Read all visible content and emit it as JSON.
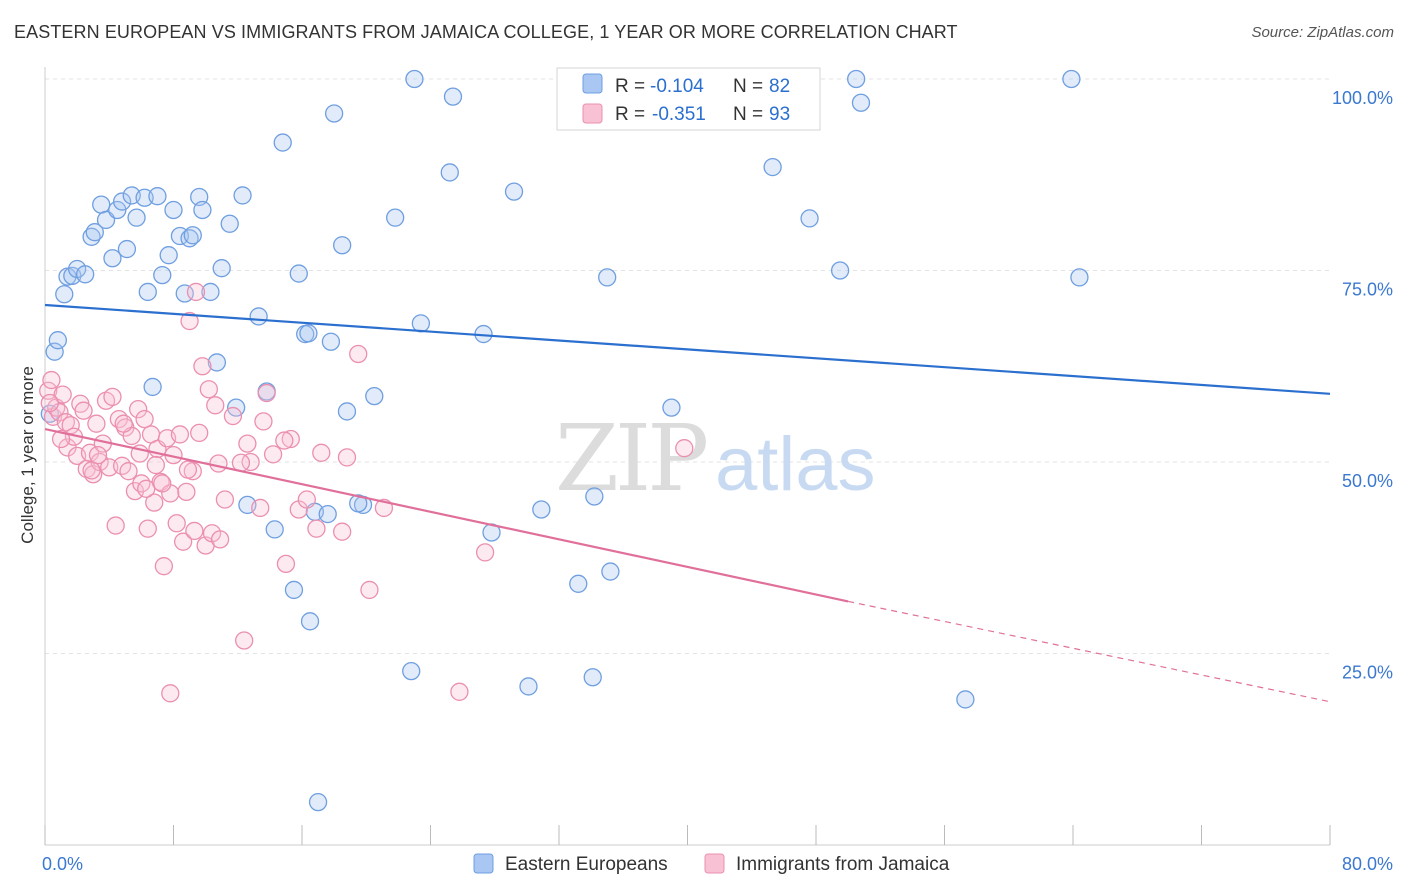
{
  "title": "EASTERN EUROPEAN VS IMMIGRANTS FROM JAMAICA COLLEGE, 1 YEAR OR MORE CORRELATION CHART",
  "source": "Source: ZipAtlas.com",
  "watermark": {
    "zip": "ZIP",
    "atlas": "atlas"
  },
  "legend_stats": [
    {
      "r_label": "R =",
      "r_value": "-0.104",
      "n_label": "N =",
      "n_value": "82"
    },
    {
      "r_label": "R =",
      "r_value": "-0.351",
      "n_label": "N =",
      "n_value": "93"
    }
  ],
  "chart_data": {
    "type": "scatter",
    "title": "EASTERN EUROPEAN VS IMMIGRANTS FROM JAMAICA COLLEGE, 1 YEAR OR MORE CORRELATION CHART",
    "xlabel": "",
    "ylabel": "College, 1 year or more",
    "xlim": [
      0,
      80
    ],
    "ylim": [
      0,
      100
    ],
    "x_tick_labels": [
      "0.0%",
      "80.0%"
    ],
    "y_tick_labels": [
      "25.0%",
      "50.0%",
      "75.0%",
      "100.0%"
    ],
    "y_ticks": [
      25,
      50,
      75,
      100
    ],
    "grid": true,
    "legend_position": "bottom",
    "series": [
      {
        "name": "Eastern Europeans",
        "color": "#7aaaf0",
        "line_color": "#2b6fcf",
        "trend": {
          "x": [
            0,
            80
          ],
          "y": [
            70.5,
            58.9
          ]
        },
        "points": [
          [
            0.3,
            56.3
          ],
          [
            0.6,
            64.4
          ],
          [
            0.8,
            65.9
          ],
          [
            1.2,
            71.9
          ],
          [
            1.4,
            74.2
          ],
          [
            1.7,
            74.3
          ],
          [
            2.0,
            75.2
          ],
          [
            2.5,
            74.5
          ],
          [
            2.9,
            79.4
          ],
          [
            3.1,
            80.0
          ],
          [
            3.5,
            83.6
          ],
          [
            3.8,
            81.6
          ],
          [
            4.2,
            76.6
          ],
          [
            4.5,
            82.9
          ],
          [
            4.8,
            84.0
          ],
          [
            5.1,
            77.8
          ],
          [
            5.4,
            84.8
          ],
          [
            5.7,
            81.9
          ],
          [
            6.2,
            84.5
          ],
          [
            6.4,
            72.2
          ],
          [
            6.7,
            59.8
          ],
          [
            7.0,
            84.7
          ],
          [
            7.3,
            74.4
          ],
          [
            7.7,
            77.0
          ],
          [
            8.0,
            82.9
          ],
          [
            8.4,
            79.5
          ],
          [
            8.7,
            72.0
          ],
          [
            9.0,
            79.2
          ],
          [
            9.2,
            79.6
          ],
          [
            9.6,
            84.6
          ],
          [
            9.8,
            82.9
          ],
          [
            10.3,
            72.2
          ],
          [
            10.7,
            63.0
          ],
          [
            11.0,
            75.3
          ],
          [
            11.5,
            81.1
          ],
          [
            11.9,
            57.1
          ],
          [
            12.3,
            84.8
          ],
          [
            12.6,
            44.4
          ],
          [
            13.3,
            69.0
          ],
          [
            13.8,
            59.2
          ],
          [
            14.3,
            41.2
          ],
          [
            14.8,
            91.7
          ],
          [
            15.5,
            33.3
          ],
          [
            15.8,
            74.6
          ],
          [
            16.2,
            66.7
          ],
          [
            16.5,
            29.2
          ],
          [
            17.0,
            5.6
          ],
          [
            17.8,
            65.7
          ],
          [
            18.0,
            95.5
          ],
          [
            18.5,
            78.3
          ],
          [
            18.8,
            56.6
          ],
          [
            19.8,
            44.4
          ],
          [
            20.5,
            58.6
          ],
          [
            21.8,
            81.9
          ],
          [
            22.8,
            22.7
          ],
          [
            23.4,
            68.1
          ],
          [
            25.2,
            87.8
          ],
          [
            25.4,
            97.7
          ],
          [
            27.3,
            66.7
          ],
          [
            27.8,
            40.8
          ],
          [
            29.2,
            85.3
          ],
          [
            30.1,
            20.7
          ],
          [
            30.9,
            43.8
          ],
          [
            33.2,
            34.1
          ],
          [
            34.1,
            21.9
          ],
          [
            34.2,
            45.5
          ],
          [
            35.0,
            74.1
          ],
          [
            35.2,
            35.7
          ],
          [
            39.0,
            57.1
          ],
          [
            45.3,
            88.5
          ],
          [
            47.6,
            81.8
          ],
          [
            49.5,
            75.0
          ],
          [
            50.5,
            100.0
          ],
          [
            50.8,
            96.9
          ],
          [
            57.3,
            19.0
          ],
          [
            63.9,
            100.0
          ],
          [
            64.4,
            74.1
          ],
          [
            16.8,
            43.5
          ],
          [
            17.6,
            43.2
          ],
          [
            19.5,
            44.6
          ],
          [
            23.0,
            100.0
          ],
          [
            16.4,
            66.8
          ]
        ]
      },
      {
        "name": "Immigrants from Jamaica",
        "color": "#f2a0bd",
        "line_color": "#e0709a",
        "trend": {
          "x": [
            0,
            50
          ],
          "y": [
            54.3,
            31.8
          ],
          "dashed_x": [
            50,
            80
          ],
          "dashed_y": [
            31.8,
            18.7
          ]
        },
        "points": [
          [
            0.2,
            59.3
          ],
          [
            0.4,
            60.7
          ],
          [
            0.5,
            55.9
          ],
          [
            0.7,
            57.1
          ],
          [
            0.9,
            56.5
          ],
          [
            1.1,
            58.8
          ],
          [
            1.3,
            55.2
          ],
          [
            1.4,
            51.9
          ],
          [
            1.6,
            54.8
          ],
          [
            1.8,
            53.3
          ],
          [
            2.0,
            50.8
          ],
          [
            2.2,
            57.6
          ],
          [
            2.4,
            56.7
          ],
          [
            2.6,
            49.1
          ],
          [
            2.8,
            51.2
          ],
          [
            3.0,
            48.4
          ],
          [
            3.2,
            55.0
          ],
          [
            3.4,
            50.0
          ],
          [
            3.6,
            52.4
          ],
          [
            3.8,
            58.0
          ],
          [
            4.0,
            49.3
          ],
          [
            4.2,
            58.5
          ],
          [
            4.4,
            41.7
          ],
          [
            4.6,
            55.6
          ],
          [
            4.8,
            49.5
          ],
          [
            5.0,
            54.5
          ],
          [
            5.2,
            48.8
          ],
          [
            5.4,
            53.4
          ],
          [
            5.6,
            46.2
          ],
          [
            5.8,
            56.9
          ],
          [
            6.0,
            47.2
          ],
          [
            6.2,
            55.6
          ],
          [
            6.4,
            41.3
          ],
          [
            6.6,
            53.6
          ],
          [
            6.8,
            44.7
          ],
          [
            7.0,
            51.7
          ],
          [
            7.2,
            47.4
          ],
          [
            7.4,
            36.4
          ],
          [
            7.6,
            53.1
          ],
          [
            7.8,
            45.9
          ],
          [
            8.0,
            50.9
          ],
          [
            8.2,
            42.0
          ],
          [
            8.4,
            53.6
          ],
          [
            8.6,
            39.6
          ],
          [
            8.8,
            46.1
          ],
          [
            9.0,
            68.4
          ],
          [
            9.2,
            48.8
          ],
          [
            9.4,
            72.2
          ],
          [
            9.6,
            53.8
          ],
          [
            9.8,
            62.5
          ],
          [
            10.0,
            39.1
          ],
          [
            10.2,
            59.5
          ],
          [
            10.4,
            40.7
          ],
          [
            10.6,
            57.4
          ],
          [
            10.8,
            49.8
          ],
          [
            11.2,
            45.1
          ],
          [
            12.4,
            26.7
          ],
          [
            12.6,
            52.4
          ],
          [
            12.8,
            50.0
          ],
          [
            13.4,
            44.0
          ],
          [
            13.6,
            55.3
          ],
          [
            13.8,
            59.0
          ],
          [
            14.2,
            51.0
          ],
          [
            15.0,
            36.7
          ],
          [
            15.3,
            53.0
          ],
          [
            15.8,
            43.8
          ],
          [
            16.3,
            45.1
          ],
          [
            16.9,
            41.3
          ],
          [
            17.2,
            51.2
          ],
          [
            18.5,
            40.9
          ],
          [
            18.8,
            50.6
          ],
          [
            19.5,
            64.1
          ],
          [
            20.2,
            33.3
          ],
          [
            21.1,
            44.0
          ],
          [
            27.4,
            38.2
          ],
          [
            39.8,
            51.8
          ],
          [
            25.8,
            20.0
          ],
          [
            7.8,
            19.8
          ],
          [
            0.3,
            57.7
          ],
          [
            1.0,
            53.0
          ],
          [
            2.9,
            48.9
          ],
          [
            3.3,
            50.9
          ],
          [
            4.9,
            55.0
          ],
          [
            5.9,
            51.1
          ],
          [
            6.9,
            49.6
          ],
          [
            7.3,
            47.2
          ],
          [
            8.9,
            49.0
          ],
          [
            9.3,
            41.0
          ],
          [
            10.9,
            39.9
          ],
          [
            11.7,
            56.0
          ],
          [
            12.2,
            49.9
          ],
          [
            14.9,
            52.8
          ],
          [
            6.3,
            46.5
          ]
        ]
      }
    ]
  }
}
